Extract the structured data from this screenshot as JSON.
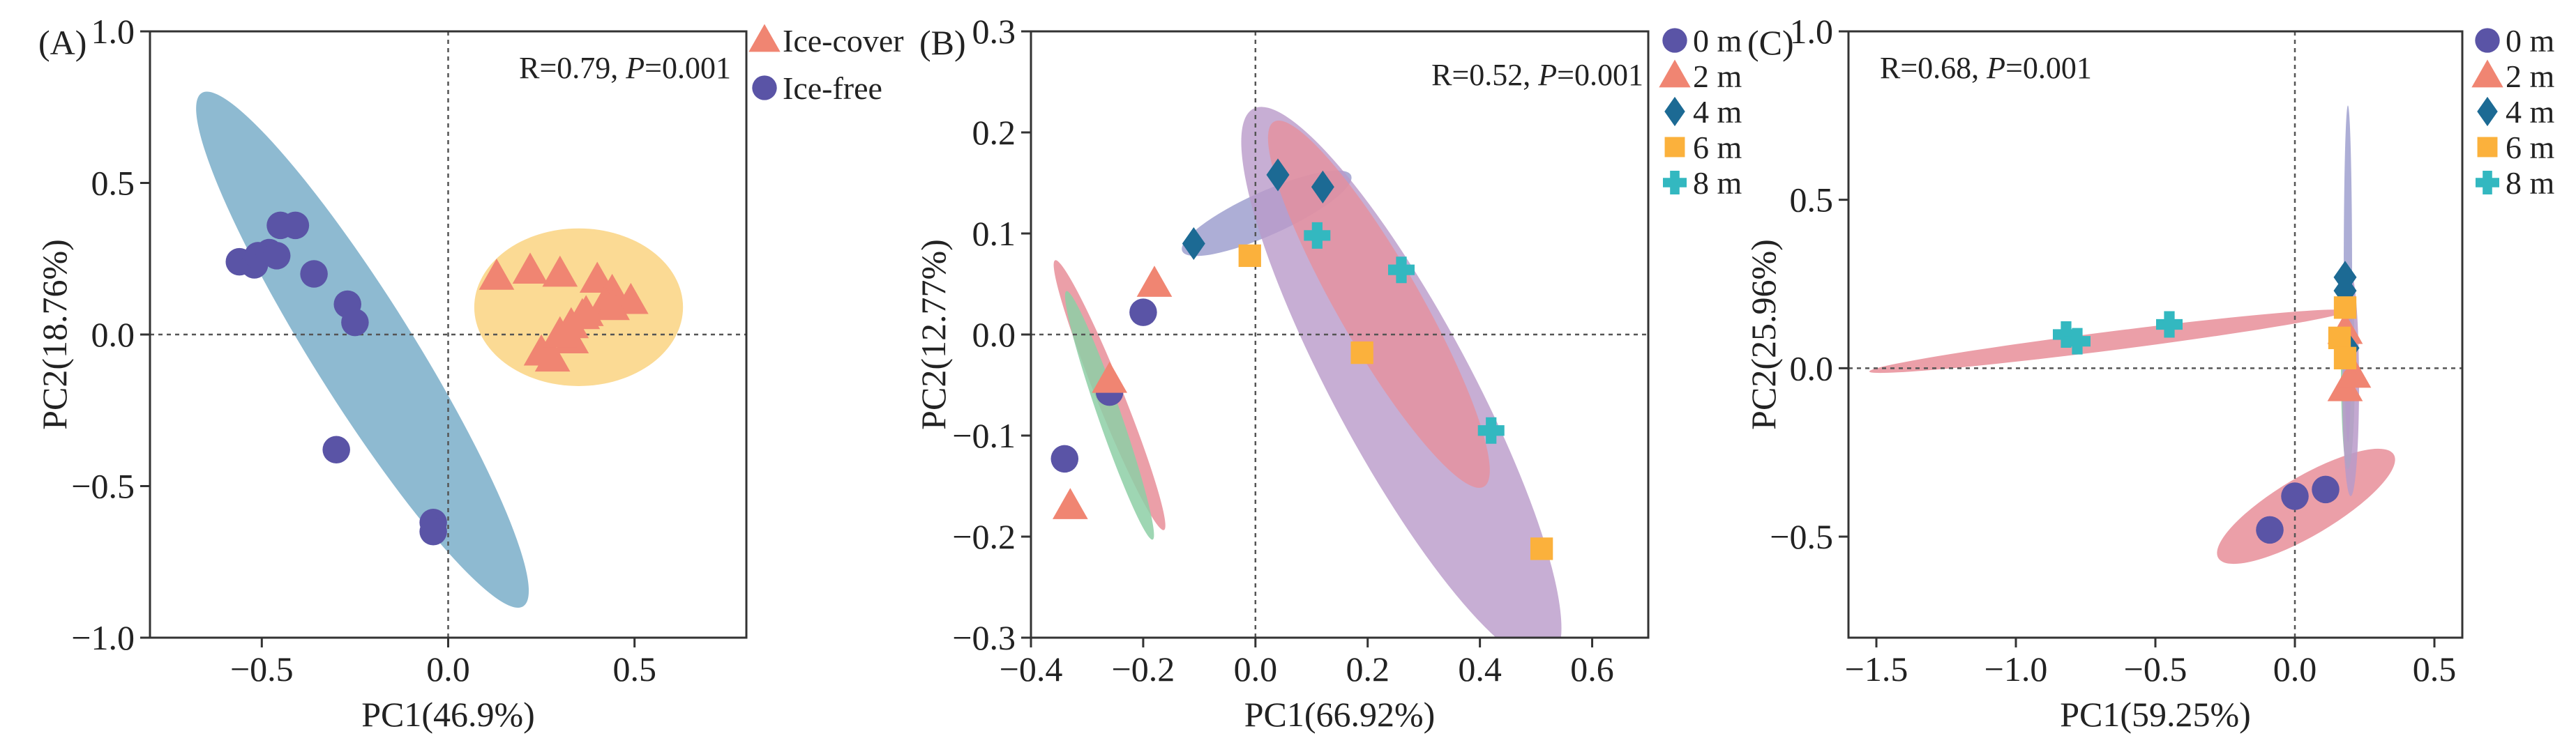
{
  "colors": {
    "ice_cover": "#f08572",
    "ice_free": "#5a54a6",
    "m0": "#5a54a6",
    "m2": "#f08572",
    "m4": "#1c6a94",
    "m6": "#fbb13c",
    "m8": "#33b8c0",
    "ellipse_blue": "#82b2cc",
    "ellipse_orange": "#fbd88e",
    "ellipse_purple": "#b99ac9",
    "ellipse_pink": "#e88e99",
    "ellipse_green": "#8dcfa6",
    "ellipse_lavender": "#9fa0cf"
  },
  "chart_data": [
    {
      "type": "scatter",
      "panel_label": "(A)",
      "xlabel": "PC1(46.9%)",
      "ylabel": "PC2(18.76%)",
      "xlim": [
        -0.8,
        0.8
      ],
      "ylim": [
        -1.0,
        1.0
      ],
      "xticks": [
        -0.5,
        0.0,
        0.5
      ],
      "yticks": [
        -1.0,
        -0.5,
        0.0,
        0.5,
        1.0
      ],
      "xtick_labels": [
        "−0.5",
        "0.0",
        "0.5"
      ],
      "ytick_labels": [
        "−1.0",
        "−0.5",
        "0.0",
        "0.5",
        "1.0"
      ],
      "stat_r": "R=0.79, ",
      "stat_p_label": "P",
      "stat_p_value": "=0.001",
      "legend_position": "outside-top-right",
      "series": [
        {
          "name": "Ice-cover",
          "marker": "triangle",
          "color_key": "ice_cover",
          "points": [
            [
              0.13,
              0.19
            ],
            [
              0.22,
              0.21
            ],
            [
              0.3,
              0.2
            ],
            [
              0.4,
              0.18
            ],
            [
              0.44,
              0.14
            ],
            [
              0.49,
              0.11
            ],
            [
              0.42,
              0.1
            ],
            [
              0.37,
              0.07
            ],
            [
              0.33,
              0.03
            ],
            [
              0.33,
              -0.02
            ],
            [
              0.25,
              -0.06
            ],
            [
              0.28,
              -0.08
            ],
            [
              0.44,
              0.09
            ],
            [
              0.36,
              0.06
            ],
            [
              0.3,
              0.0
            ]
          ]
        },
        {
          "name": "Ice-free",
          "marker": "circle",
          "color_key": "ice_free",
          "points": [
            [
              -0.56,
              0.24
            ],
            [
              -0.52,
              0.23
            ],
            [
              -0.51,
              0.26
            ],
            [
              -0.48,
              0.27
            ],
            [
              -0.46,
              0.26
            ],
            [
              -0.45,
              0.36
            ],
            [
              -0.41,
              0.36
            ],
            [
              -0.36,
              0.2
            ],
            [
              -0.27,
              0.1
            ],
            [
              -0.25,
              0.04
            ],
            [
              -0.3,
              -0.38
            ],
            [
              -0.04,
              -0.62
            ],
            [
              -0.04,
              -0.65
            ]
          ]
        }
      ],
      "ellipses": [
        {
          "cx": -0.23,
          "cy": -0.05,
          "rx": 0.95,
          "ry": 0.14,
          "angle": -63,
          "color_key": "ellipse_blue",
          "opacity": 0.9
        },
        {
          "cx": 0.35,
          "cy": 0.09,
          "rx": 0.28,
          "ry": 0.26,
          "angle": 0,
          "color_key": "ellipse_orange",
          "opacity": 0.95
        }
      ]
    },
    {
      "type": "scatter",
      "panel_label": "(B)",
      "xlabel": "PC1(66.92%)",
      "ylabel": "PC2(12.77%)",
      "xlim": [
        -0.4,
        0.7
      ],
      "ylim": [
        -0.3,
        0.3
      ],
      "xticks": [
        -0.4,
        -0.2,
        0.0,
        0.2,
        0.4,
        0.6
      ],
      "yticks": [
        -0.3,
        -0.2,
        -0.1,
        0.0,
        0.1,
        0.2,
        0.3
      ],
      "xtick_labels": [
        "−0.4",
        "−0.2",
        "0.0",
        "0.2",
        "0.4",
        "0.6"
      ],
      "ytick_labels": [
        "−0.3",
        "−0.2",
        "−0.1",
        "0.0",
        "0.1",
        "0.2",
        "0.3"
      ],
      "stat_r": "R=0.52, ",
      "stat_p_label": "P",
      "stat_p_value": "=0.001",
      "legend_position": "outside-top-right",
      "series": [
        {
          "name": "0 m",
          "marker": "circle",
          "color_key": "m0",
          "points": [
            [
              -0.2,
              0.022
            ],
            [
              -0.26,
              -0.057
            ],
            [
              -0.34,
              -0.123
            ]
          ]
        },
        {
          "name": "2 m",
          "marker": "triangle",
          "color_key": "m2",
          "points": [
            [
              -0.18,
              0.05
            ],
            [
              -0.26,
              -0.045
            ],
            [
              -0.33,
              -0.17
            ]
          ]
        },
        {
          "name": "4 m",
          "marker": "diamond",
          "color_key": "m4",
          "points": [
            [
              -0.11,
              0.09
            ],
            [
              0.04,
              0.158
            ],
            [
              0.12,
              0.146
            ]
          ]
        },
        {
          "name": "6 m",
          "marker": "square",
          "color_key": "m6",
          "points": [
            [
              -0.01,
              0.078
            ],
            [
              0.19,
              -0.018
            ],
            [
              0.51,
              -0.212
            ]
          ]
        },
        {
          "name": "8 m",
          "marker": "cross",
          "color_key": "m8",
          "points": [
            [
              0.11,
              0.098
            ],
            [
              0.26,
              0.064
            ],
            [
              0.42,
              -0.095
            ]
          ]
        }
      ],
      "ellipses": [
        {
          "cx": -0.26,
          "cy": -0.06,
          "rx": 0.165,
          "ry": 0.018,
          "angle": -54,
          "color_key": "ellipse_pink",
          "opacity": 0.85
        },
        {
          "cx": -0.26,
          "cy": -0.08,
          "rx": 0.145,
          "ry": 0.016,
          "angle": -58,
          "color_key": "ellipse_green",
          "opacity": 0.85
        },
        {
          "cx": 0.02,
          "cy": 0.12,
          "rx": 0.155,
          "ry": 0.022,
          "angle": 14,
          "color_key": "ellipse_lavender",
          "opacity": 0.85
        },
        {
          "cx": 0.26,
          "cy": -0.05,
          "rx": 0.38,
          "ry": 0.085,
          "angle": -46,
          "color_key": "ellipse_purple",
          "opacity": 0.8
        },
        {
          "cx": 0.22,
          "cy": 0.03,
          "rx": 0.26,
          "ry": 0.05,
          "angle": -44,
          "color_key": "ellipse_pink",
          "opacity": 0.75
        }
      ]
    },
    {
      "type": "scatter",
      "panel_label": "(C)",
      "xlabel": "PC1(59.25%)",
      "ylabel": "PC2(25.96%)",
      "xlim": [
        -1.6,
        0.6
      ],
      "ylim": [
        -0.8,
        1.0
      ],
      "xticks": [
        -1.5,
        -1.0,
        -0.5,
        0.0,
        0.5
      ],
      "yticks": [
        -0.5,
        0.0,
        0.5,
        1.0
      ],
      "xtick_labels": [
        "−1.5",
        "−1.0",
        "−0.5",
        "0.0",
        "0.5"
      ],
      "ytick_labels": [
        "−0.5",
        "0.0",
        "0.5",
        "1.0"
      ],
      "stat_r": "R=0.68, ",
      "stat_p_label": "P",
      "stat_p_value": "=0.001",
      "legend_position": "outside-top-right",
      "series": [
        {
          "name": "0 m",
          "marker": "circle",
          "color_key": "m0",
          "points": [
            [
              0.0,
              -0.38
            ],
            [
              0.11,
              -0.36
            ],
            [
              -0.09,
              -0.48
            ]
          ]
        },
        {
          "name": "2 m",
          "marker": "triangle",
          "color_key": "m2",
          "points": [
            [
              0.18,
              -0.06
            ],
            [
              0.21,
              -0.02
            ],
            [
              0.18,
              0.11
            ]
          ]
        },
        {
          "name": "4 m",
          "marker": "diamond",
          "color_key": "m4",
          "points": [
            [
              0.18,
              0.27
            ],
            [
              0.18,
              0.23
            ],
            [
              0.19,
              0.06
            ]
          ]
        },
        {
          "name": "6 m",
          "marker": "square",
          "color_key": "m6",
          "points": [
            [
              0.18,
              0.18
            ],
            [
              0.16,
              0.09
            ],
            [
              0.18,
              0.03
            ]
          ]
        },
        {
          "name": "8 m",
          "marker": "cross",
          "color_key": "m8",
          "points": [
            [
              -0.82,
              0.1
            ],
            [
              -0.78,
              0.08
            ],
            [
              -0.45,
              0.13
            ]
          ]
        }
      ],
      "ellipses": [
        {
          "cx": -0.67,
          "cy": 0.08,
          "rx": 0.86,
          "ry": 0.028,
          "angle": 6,
          "color_key": "ellipse_pink",
          "opacity": 0.85
        },
        {
          "cx": 0.04,
          "cy": -0.41,
          "rx": 0.35,
          "ry": 0.09,
          "angle": 26,
          "color_key": "ellipse_pink",
          "opacity": 0.85
        },
        {
          "cx": 0.19,
          "cy": 0.0,
          "rx": 0.3,
          "ry": 0.025,
          "angle": 90,
          "color_key": "ellipse_green",
          "opacity": 0.85
        },
        {
          "cx": 0.19,
          "cy": 0.28,
          "rx": 0.5,
          "ry": 0.015,
          "angle": 90,
          "color_key": "ellipse_lavender",
          "opacity": 0.85
        },
        {
          "cx": 0.2,
          "cy": -0.05,
          "rx": 0.33,
          "ry": 0.03,
          "angle": 90,
          "color_key": "ellipse_purple",
          "opacity": 0.85
        }
      ]
    }
  ]
}
